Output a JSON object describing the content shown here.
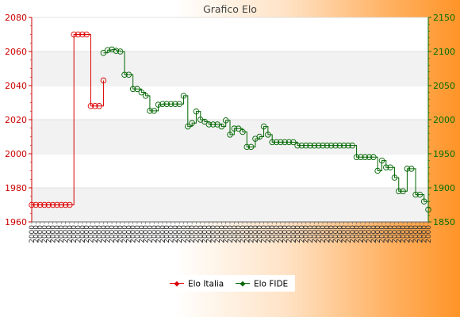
{
  "chart_data": {
    "type": "line",
    "title": "Grafico Elo",
    "xlabel": "",
    "y_left": {
      "lim": [
        1960,
        2080
      ],
      "ticks": [
        1960,
        1980,
        2000,
        2020,
        2040,
        2060,
        2080
      ],
      "color": "#cc0000"
    },
    "y_right": {
      "lim": [
        1850,
        2150
      ],
      "ticks": [
        1850,
        1900,
        1950,
        2000,
        2050,
        2100,
        2150
      ],
      "color": "#007000"
    },
    "x_count": 95,
    "series": [
      {
        "name": "Elo Italia",
        "axis": "left",
        "color": "#dd0000",
        "x": [
          0,
          1,
          2,
          3,
          4,
          5,
          6,
          7,
          8,
          9,
          10,
          11,
          12,
          13,
          14,
          15,
          16,
          17
        ],
        "values": [
          1970,
          1970,
          1970,
          1970,
          1970,
          1970,
          1970,
          1970,
          1970,
          1970,
          2070,
          2070,
          2070,
          2070,
          2028,
          2028,
          2028,
          2043
        ]
      },
      {
        "name": "Elo FIDE",
        "axis": "right",
        "color": "#006600",
        "x": [
          17,
          18,
          19,
          20,
          21,
          22,
          23,
          24,
          25,
          26,
          27,
          28,
          29,
          30,
          31,
          32,
          33,
          34,
          35,
          36,
          37,
          38,
          39,
          40,
          41,
          42,
          43,
          44,
          45,
          46,
          47,
          48,
          49,
          50,
          51,
          52,
          53,
          54,
          55,
          56,
          57,
          58,
          59,
          60,
          61,
          62,
          63,
          64,
          65,
          66,
          67,
          68,
          69,
          70,
          71,
          72,
          73,
          74,
          75,
          76,
          77,
          78,
          79,
          80,
          81,
          82,
          83,
          84,
          85,
          86,
          87,
          88,
          89,
          90,
          91,
          92,
          93,
          94
        ],
        "values": [
          2098,
          2102,
          2103,
          2101,
          2100,
          2066,
          2066,
          2045,
          2045,
          2040,
          2035,
          2013,
          2013,
          2022,
          2023,
          2023,
          2023,
          2023,
          2023,
          2035,
          1990,
          1995,
          2012,
          2000,
          1997,
          1993,
          1993,
          1993,
          1990,
          1999,
          1978,
          1987,
          1987,
          1982,
          1960,
          1960,
          1972,
          1975,
          1990,
          1978,
          1967,
          1967,
          1967,
          1967,
          1967,
          1967,
          1962,
          1962,
          1962,
          1962,
          1962,
          1962,
          1962,
          1962,
          1962,
          1962,
          1962,
          1962,
          1962,
          1962,
          1945,
          1945,
          1945,
          1945,
          1945,
          1925,
          1940,
          1930,
          1930,
          1915,
          1895,
          1895,
          1928,
          1928,
          1890,
          1890,
          1880,
          1868
        ]
      }
    ]
  },
  "legend": {
    "italia": "Elo Italia",
    "fide": "Elo FIDE"
  },
  "x_tick_label": "2000"
}
